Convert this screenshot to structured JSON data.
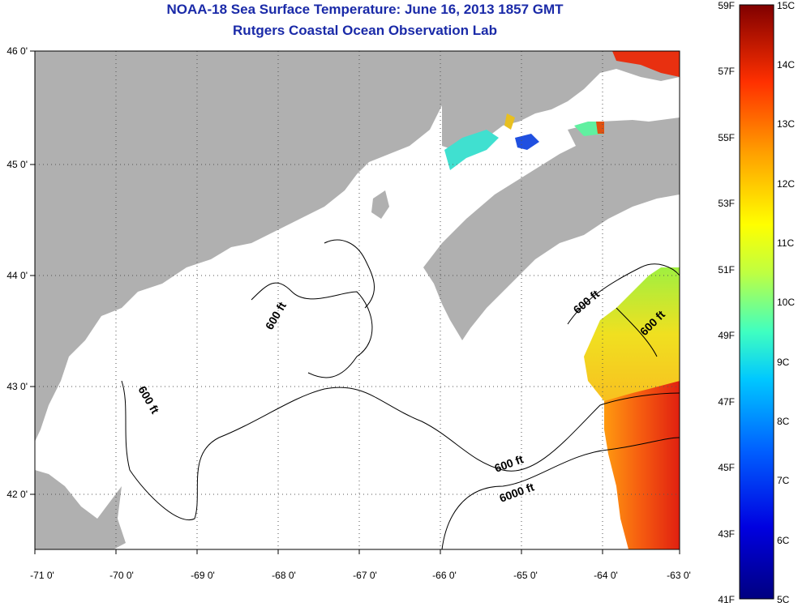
{
  "title": {
    "line1": "NOAA-18 Sea Surface Temperature:  June 16, 2013 1857 GMT",
    "line2": "Rutgers Coastal Ocean Observation Lab"
  },
  "map": {
    "lon_ticks": [
      "-71 0'",
      "-70 0'",
      "-69 0'",
      "-68 0'",
      "-67 0'",
      "-66 0'",
      "-65 0'",
      "-64 0'",
      "-63 0'"
    ],
    "lat_ticks": [
      "46 0'",
      "45 0'",
      "44 0'",
      "43 0'",
      "42 0'"
    ],
    "contour_labels": [
      "600 ft",
      "600 ft",
      "600 ft",
      "600 ft",
      "600 ft",
      "6000 ft"
    ],
    "colors": {
      "land": "#b0b0b0",
      "ocean": "#ffffff",
      "grid": "#555555"
    }
  },
  "colorbar": {
    "fahrenheit": [
      "59F",
      "57F",
      "55F",
      "53F",
      "51F",
      "49F",
      "47F",
      "45F",
      "43F",
      "41F"
    ],
    "celsius": [
      "15C",
      "14C",
      "13C",
      "12C",
      "11C",
      "10C",
      "9C",
      "8C",
      "7C",
      "6C",
      "5C"
    ]
  }
}
